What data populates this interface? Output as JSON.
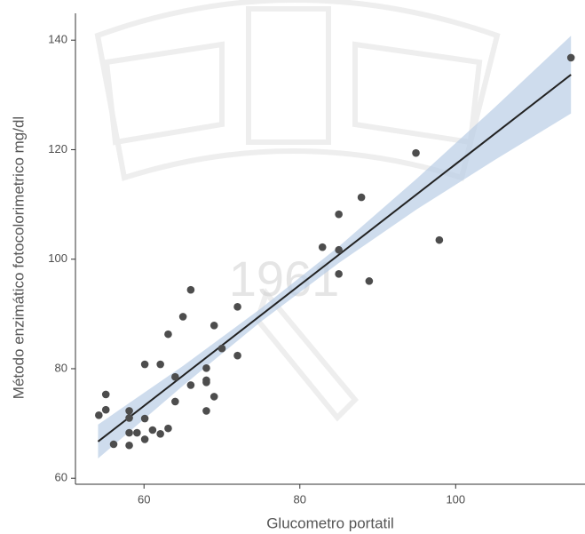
{
  "chart_data": {
    "type": "scatter",
    "watermark": "1961",
    "x_label": "Glucometro portatil",
    "y_label": "Método enzimático fotocolorimetrico mg/dl",
    "color": "#4d4d4d",
    "x": [
      54.2,
      55.1,
      55.1,
      56.1,
      58.1,
      58.1,
      58.1,
      58.1,
      59.1,
      60.1,
      60.1,
      60.1,
      61.1,
      62.1,
      62.1,
      63.1,
      63.1,
      64.0,
      64.0,
      65.0,
      66.0,
      66.0,
      68.0,
      68.0,
      68.0,
      68.0,
      69.0,
      69.0,
      70.0,
      72.0,
      72.0,
      82.9,
      85.0,
      85.0,
      85.0,
      87.9,
      88.9,
      94.9,
      97.9,
      114.8
    ],
    "values": [
      71.5,
      75.3,
      72.5,
      66.2,
      72.3,
      71.0,
      68.3,
      66.0,
      68.3,
      80.8,
      70.9,
      67.1,
      68.8,
      80.8,
      68.1,
      69.1,
      86.3,
      78.5,
      74.0,
      89.5,
      94.4,
      77.0,
      80.1,
      77.9,
      77.5,
      72.3,
      87.9,
      74.9,
      83.7,
      91.3,
      82.4,
      102.2,
      108.2,
      101.7,
      97.3,
      111.3,
      96.0,
      119.4,
      103.5,
      136.8
    ],
    "fit": {
      "color": "#222222",
      "x": [
        54.1,
        114.8
      ],
      "values": [
        66.7,
        133.7
      ]
    },
    "band": {
      "color": "#b9cde5",
      "x": [
        54.1,
        65,
        75,
        85,
        95,
        105,
        114.8
      ],
      "lower": [
        63.6,
        76.9,
        88.6,
        99.3,
        109.1,
        118.1,
        126.6
      ],
      "upper": [
        69.8,
        80.5,
        91.0,
        102.3,
        114.7,
        127.7,
        140.8
      ]
    },
    "xlim": [
      51.2,
      116.6
    ],
    "ylim": [
      58.9,
      144.9
    ],
    "xticks": [
      60,
      80,
      100
    ],
    "yticks": [
      60,
      80,
      100,
      120,
      140
    ]
  }
}
